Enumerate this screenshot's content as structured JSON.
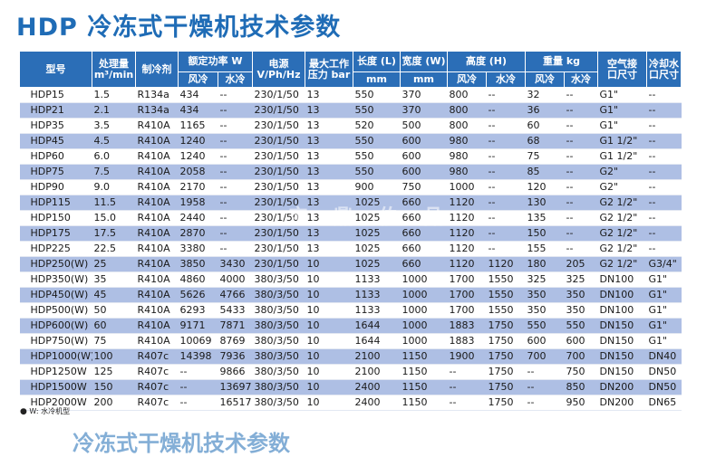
{
  "title": "HDP 冷冻式干燥机技术参数",
  "headers": {
    "model": "型号",
    "capacity_line1": "处理量",
    "capacity_line2": "m³/min",
    "refrigerant": "制冷剂",
    "power": "额定功率 W",
    "power_air": "风冷",
    "power_water": "水冷",
    "voltage_line1": "电源",
    "voltage_line2": "V/Ph/Hz",
    "pressure_line1": "最大工作",
    "pressure_line2": "压力 bar",
    "length": "长度 (L)",
    "length_unit": "mm",
    "width": "宽度 (W)",
    "width_unit": "mm",
    "height": "高度 (H)",
    "height_air": "风冷",
    "height_water": "水冷",
    "weight": "重量 kg",
    "weight_air": "风冷",
    "weight_water": "水冷",
    "air_conn_line1": "空气接",
    "air_conn_line2": "口尺寸",
    "cool_conn_line1": "冷却水",
    "cool_conn_line2": "口尺寸"
  },
  "rows": [
    [
      "HDP15",
      "1.5",
      "R134a",
      "434",
      "--",
      "230/1/50",
      "13",
      "550",
      "370",
      "800",
      "--",
      "32",
      "--",
      "G1\"",
      "--"
    ],
    [
      "HDP21",
      "2.1",
      "R134a",
      "434",
      "--",
      "230/1/50",
      "13",
      "550",
      "370",
      "800",
      "--",
      "36",
      "--",
      "G1\"",
      "--"
    ],
    [
      "HDP35",
      "3.5",
      "R410A",
      "1165",
      "--",
      "230/1/50",
      "13",
      "520",
      "500",
      "800",
      "--",
      "60",
      "--",
      "G1\"",
      "--"
    ],
    [
      "HDP45",
      "4.5",
      "R410A",
      "1240",
      "--",
      "230/1/50",
      "13",
      "550",
      "600",
      "980",
      "--",
      "68",
      "--",
      "G1 1/2\"",
      "--"
    ],
    [
      "HDP60",
      "6.0",
      "R410A",
      "1240",
      "--",
      "230/1/50",
      "13",
      "550",
      "600",
      "980",
      "--",
      "75",
      "--",
      "G1 1/2\"",
      "--"
    ],
    [
      "HDP75",
      "7.5",
      "R410A",
      "2058",
      "--",
      "230/1/50",
      "13",
      "550",
      "600",
      "980",
      "--",
      "85",
      "--",
      "G2\"",
      "--"
    ],
    [
      "HDP90",
      "9.0",
      "R410A",
      "2170",
      "--",
      "230/1/50",
      "13",
      "900",
      "750",
      "1000",
      "--",
      "120",
      "--",
      "G2\"",
      "--"
    ],
    [
      "HDP115",
      "11.5",
      "R410A",
      "1958",
      "--",
      "230/1/50",
      "13",
      "1025",
      "660",
      "1120",
      "--",
      "130",
      "--",
      "G2 1/2\"",
      "--"
    ],
    [
      "HDP150",
      "15.0",
      "R410A",
      "2440",
      "--",
      "230/1/50",
      "13",
      "1025",
      "660",
      "1120",
      "--",
      "135",
      "--",
      "G2 1/2\"",
      "--"
    ],
    [
      "HDP175",
      "17.5",
      "R410A",
      "2870",
      "--",
      "230/1/50",
      "13",
      "1025",
      "660",
      "1120",
      "--",
      "150",
      "--",
      "G2 1/2\"",
      "--"
    ],
    [
      "HDP225",
      "22.5",
      "R410A",
      "3380",
      "--",
      "230/1/50",
      "13",
      "1025",
      "660",
      "1120",
      "--",
      "155",
      "--",
      "G2 1/2\"",
      "--"
    ],
    [
      "HDP250(W)",
      "25",
      "R410A",
      "3850",
      "3430",
      "230/1/50",
      "10",
      "1025",
      "660",
      "1120",
      "1120",
      "180",
      "205",
      "G2 1/2\"",
      "G3/4\""
    ],
    [
      "HDP350(W)",
      "35",
      "R410A",
      "4860",
      "4000",
      "380/3/50",
      "10",
      "1133",
      "1000",
      "1700",
      "1550",
      "325",
      "325",
      "DN100",
      "G1\""
    ],
    [
      "HDP450(W)",
      "45",
      "R410A",
      "5626",
      "4766",
      "380/3/50",
      "10",
      "1133",
      "1000",
      "1700",
      "1550",
      "350",
      "350",
      "DN100",
      "G1\""
    ],
    [
      "HDP500(W)",
      "50",
      "R410A",
      "6293",
      "5433",
      "380/3/50",
      "10",
      "1133",
      "1000",
      "1700",
      "1550",
      "350",
      "350",
      "DN100",
      "G1\""
    ],
    [
      "HDP600(W)",
      "60",
      "R410A",
      "9171",
      "7871",
      "380/3/50",
      "10",
      "1644",
      "1000",
      "1883",
      "1750",
      "550",
      "550",
      "DN150",
      "G1\""
    ],
    [
      "HDP750(W)",
      "75",
      "R410A",
      "10069",
      "8769",
      "380/3/50",
      "10",
      "1644",
      "1000",
      "1883",
      "1750",
      "600",
      "600",
      "DN150",
      "G1\""
    ],
    [
      "HDP1000(W)",
      "100",
      "R407c",
      "14398",
      "7936",
      "380/3/50",
      "10",
      "2100",
      "1150",
      "1900",
      "1750",
      "700",
      "700",
      "DN150",
      "DN40"
    ],
    [
      "HDP1250W",
      "125",
      "R407c",
      "--",
      "9866",
      "380/3/50",
      "10",
      "2100",
      "1150",
      "--",
      "1750",
      "--",
      "750",
      "DN150",
      "DN50"
    ],
    [
      "HDP1500W",
      "150",
      "R407c",
      "--",
      "13697",
      "380/3/50",
      "10",
      "2400",
      "1150",
      "--",
      "1750",
      "--",
      "850",
      "DN200",
      "DN50"
    ],
    [
      "HDP2000W",
      "200",
      "R407c",
      "--",
      "16517",
      "380/3/50",
      "10",
      "2400",
      "1150",
      "--",
      "1750",
      "--",
      "950",
      "DN200",
      "DN65"
    ]
  ],
  "footnote": "W: 水冷机型",
  "watermark": "宝 鼎 伯 品",
  "next_title": "冷冻式干燥机技术参数"
}
